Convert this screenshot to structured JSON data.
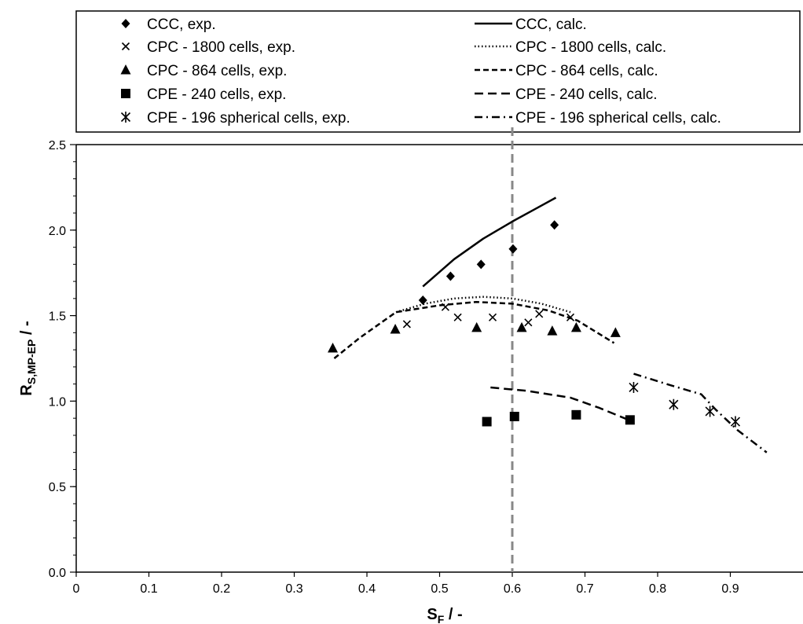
{
  "chart_data": {
    "type": "scatter",
    "title": "",
    "xlabel": {
      "main": "S",
      "sub": "F",
      "suffix": " / -"
    },
    "ylabel": {
      "main": "R",
      "sub": "S,MP-EP",
      "suffix": " / -"
    },
    "xlim": [
      0,
      1.0
    ],
    "ylim": [
      0,
      2.5
    ],
    "xticks": [
      0,
      0.1,
      0.2,
      0.3,
      0.4,
      0.5,
      0.6,
      0.7,
      0.8,
      0.9
    ],
    "xtick_labels": [
      "0",
      "0.1",
      "0.2",
      "0.3",
      "0.4",
      "0.5",
      "0.6",
      "0.7",
      "0.8",
      "0.9"
    ],
    "yticks": [
      0,
      0.5,
      1.0,
      1.5,
      2.0,
      2.5
    ],
    "ytick_labels": [
      "0.0",
      "0.5",
      "1.0",
      "1.5",
      "2.0",
      "2.5"
    ],
    "grid": false,
    "legend_position": "top",
    "reference_line": {
      "x": 0.6,
      "style": "dashed",
      "color": "#888888"
    },
    "series": [
      {
        "name": "CCC, exp.",
        "kind": "markers",
        "marker": "diamond",
        "x": [
          0.477,
          0.515,
          0.557,
          0.601,
          0.658
        ],
        "y": [
          1.59,
          1.73,
          1.8,
          1.89,
          2.03
        ]
      },
      {
        "name": "CPC - 1800 cells, exp.",
        "kind": "markers",
        "marker": "x",
        "x": [
          0.455,
          0.508,
          0.525,
          0.573,
          0.622,
          0.637,
          0.68
        ],
        "y": [
          1.45,
          1.55,
          1.49,
          1.49,
          1.46,
          1.51,
          1.49
        ]
      },
      {
        "name": "CPC - 864 cells, exp.",
        "kind": "markers",
        "marker": "triangle",
        "x": [
          0.353,
          0.439,
          0.551,
          0.613,
          0.655,
          0.688,
          0.742
        ],
        "y": [
          1.31,
          1.42,
          1.43,
          1.43,
          1.41,
          1.43,
          1.4
        ]
      },
      {
        "name": "CPE - 240 cells, exp.",
        "kind": "markers",
        "marker": "square",
        "x": [
          0.565,
          0.603,
          0.688,
          0.762
        ],
        "y": [
          0.88,
          0.91,
          0.92,
          0.89
        ]
      },
      {
        "name": "CPE - 196 spherical cells, exp.",
        "kind": "markers",
        "marker": "asterisk",
        "x": [
          0.767,
          0.822,
          0.872,
          0.907
        ],
        "y": [
          1.08,
          0.98,
          0.94,
          0.88
        ]
      },
      {
        "name": "CCC, calc.",
        "kind": "line",
        "dash": "solid",
        "x": [
          0.477,
          0.52,
          0.56,
          0.6,
          0.63,
          0.66
        ],
        "y": [
          1.67,
          1.83,
          1.95,
          2.05,
          2.12,
          2.19
        ]
      },
      {
        "name": "CPC - 1800 cells, calc.",
        "kind": "line",
        "dash": "dotted",
        "x": [
          0.44,
          0.48,
          0.52,
          0.56,
          0.6,
          0.64,
          0.68
        ],
        "y": [
          1.52,
          1.57,
          1.6,
          1.61,
          1.6,
          1.57,
          1.52
        ]
      },
      {
        "name": "CPC - 864 cells, calc.",
        "kind": "line",
        "dash": "dashed",
        "x": [
          0.355,
          0.39,
          0.44,
          0.5,
          0.55,
          0.6,
          0.65,
          0.69,
          0.74
        ],
        "y": [
          1.25,
          1.37,
          1.52,
          1.56,
          1.58,
          1.57,
          1.53,
          1.47,
          1.34
        ]
      },
      {
        "name": "CPE - 240 cells, calc.",
        "kind": "line",
        "dash": "longdash",
        "x": [
          0.57,
          0.62,
          0.68,
          0.72,
          0.76
        ],
        "y": [
          1.08,
          1.06,
          1.02,
          0.96,
          0.89
        ]
      },
      {
        "name": "CPE - 196 spherical cells, calc.",
        "kind": "line",
        "dash": "dashdot",
        "x": [
          0.767,
          0.82,
          0.86,
          0.88,
          0.91,
          0.95
        ],
        "y": [
          1.16,
          1.09,
          1.04,
          0.95,
          0.83,
          0.7
        ]
      }
    ]
  }
}
